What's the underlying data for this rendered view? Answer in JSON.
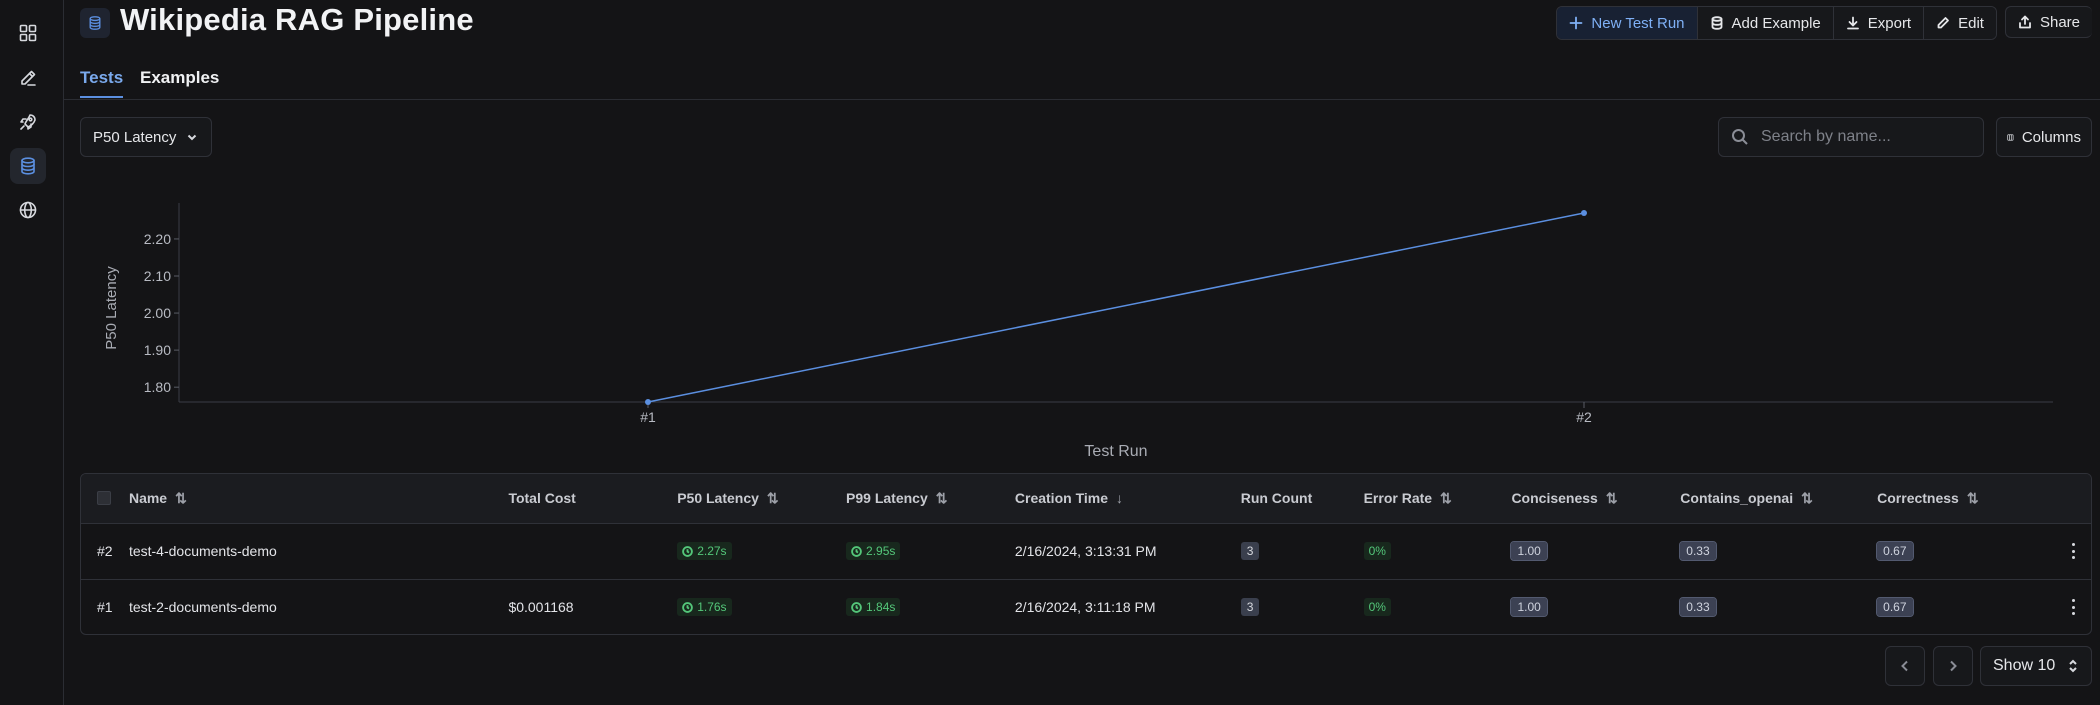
{
  "rail": [
    "grid-icon",
    "pen-icon",
    "rocket-icon",
    "database-icon",
    "globe-icon"
  ],
  "header": {
    "title": "Wikipedia RAG Pipeline",
    "actions": {
      "new_test_run": "New Test Run",
      "add_example": "Add Example",
      "export": "Export",
      "edit": "Edit",
      "share": "Share"
    }
  },
  "tabs": [
    {
      "label": "Tests",
      "active": true
    },
    {
      "label": "Examples",
      "active": false
    }
  ],
  "toolbar": {
    "metric": "P50 Latency",
    "search_placeholder": "Search by name...",
    "columns": "Columns"
  },
  "chart_data": {
    "type": "line",
    "categories": [
      "#1",
      "#2"
    ],
    "series": [
      {
        "values": [
          1.76,
          2.27
        ],
        "color": "#5b8fe0"
      }
    ],
    "ylabel": "P50 Latency",
    "xlabel": "Test Run",
    "yticks": [
      "1.80",
      "1.90",
      "2.00",
      "2.10",
      "2.20"
    ],
    "ylim": [
      1.76,
      2.27
    ],
    "grid": false
  },
  "table": {
    "headers": {
      "name": "Name",
      "total_cost": "Total Cost",
      "p50": "P50 Latency",
      "p99": "P99 Latency",
      "creation_time": "Creation Time",
      "run_count": "Run Count",
      "error_rate": "Error Rate",
      "conciseness": "Conciseness",
      "contains_openai": "Contains_openai",
      "correctness": "Correctness"
    },
    "rows": [
      {
        "id": "#2",
        "name": "test-4-documents-demo",
        "total_cost": "",
        "p50": "2.27s",
        "p99": "2.95s",
        "creation_time": "2/16/2024, 3:13:31 PM",
        "run_count": "3",
        "error_rate": "0%",
        "conciseness": "1.00",
        "contains_openai": "0.33",
        "correctness": "0.67"
      },
      {
        "id": "#1",
        "name": "test-2-documents-demo",
        "total_cost": "$0.001168",
        "p50": "1.76s",
        "p99": "1.84s",
        "creation_time": "2/16/2024, 3:11:18 PM",
        "run_count": "3",
        "error_rate": "0%",
        "conciseness": "1.00",
        "contains_openai": "0.33",
        "correctness": "0.67"
      }
    ]
  },
  "pagination": {
    "show": "Show 10"
  }
}
